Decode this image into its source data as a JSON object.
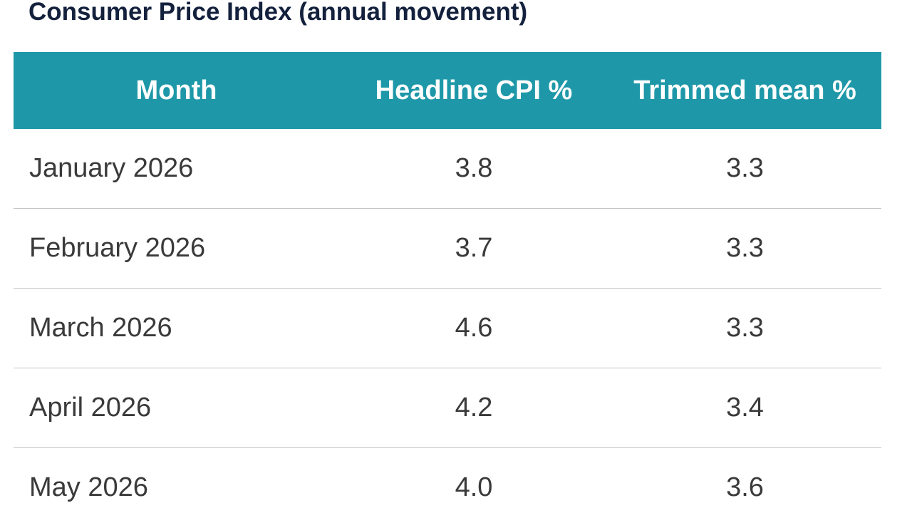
{
  "title": "Consumer Price Index (annual movement)",
  "colors": {
    "header_background": "#1e98a8",
    "header_text": "#ffffff",
    "title_text": "#14213d",
    "body_text": "#3a3a3a",
    "row_divider": "#c4c4c4"
  },
  "table": {
    "headers": [
      "Month",
      "Headline CPI %",
      "Trimmed mean %"
    ],
    "rows": [
      {
        "month": "January 2026",
        "headline": "3.8",
        "trimmed": "3.3"
      },
      {
        "month": "February 2026",
        "headline": "3.7",
        "trimmed": "3.3"
      },
      {
        "month": "March 2026",
        "headline": "4.6",
        "trimmed": "3.3"
      },
      {
        "month": "April 2026",
        "headline": "4.2",
        "trimmed": "3.4"
      },
      {
        "month": "May 2026",
        "headline": "4.0",
        "trimmed": "3.6"
      }
    ]
  }
}
